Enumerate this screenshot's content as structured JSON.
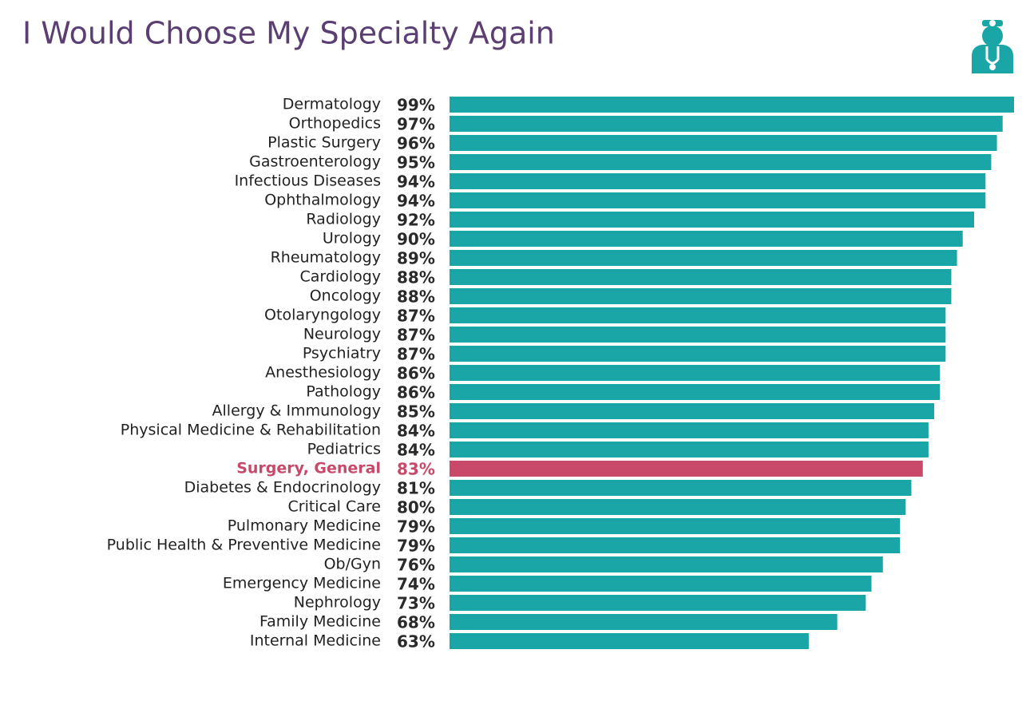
{
  "chart_data": {
    "type": "bar",
    "orientation": "horizontal",
    "title": "I Would Choose My Specialty Again",
    "categories": [
      "Dermatology",
      "Orthopedics",
      "Plastic Surgery",
      "Gastroenterology",
      "Infectious Diseases",
      "Ophthalmology",
      "Radiology",
      "Urology",
      "Rheumatology",
      "Cardiology",
      "Oncology",
      "Otolaryngology",
      "Neurology",
      "Psychiatry",
      "Anesthesiology",
      "Pathology",
      "Allergy & Immunology",
      "Physical Medicine & Rehabilitation",
      "Pediatrics",
      "Surgery, General",
      "Diabetes & Endocrinology",
      "Critical Care",
      "Pulmonary Medicine",
      "Public Health & Preventive Medicine",
      "Ob/Gyn",
      "Emergency Medicine",
      "Nephrology",
      "Family Medicine",
      "Internal Medicine"
    ],
    "values": [
      99,
      97,
      96,
      95,
      94,
      94,
      92,
      90,
      89,
      88,
      88,
      87,
      87,
      87,
      86,
      86,
      85,
      84,
      84,
      83,
      81,
      80,
      79,
      79,
      76,
      74,
      73,
      68,
      63
    ],
    "value_labels": [
      "99%",
      "97%",
      "96%",
      "95%",
      "94%",
      "94%",
      "92%",
      "90%",
      "89%",
      "88%",
      "88%",
      "87%",
      "87%",
      "87%",
      "86%",
      "86%",
      "85%",
      "84%",
      "84%",
      "83%",
      "81%",
      "80%",
      "79%",
      "79%",
      "76%",
      "74%",
      "73%",
      "68%",
      "63%"
    ],
    "color": "#1aa6a6",
    "colors": [
      "#1aa6a6",
      "#1aa6a6",
      "#1aa6a6",
      "#1aa6a6",
      "#1aa6a6",
      "#1aa6a6",
      "#1aa6a6",
      "#1aa6a6",
      "#1aa6a6",
      "#1aa6a6",
      "#1aa6a6",
      "#1aa6a6",
      "#1aa6a6",
      "#1aa6a6",
      "#1aa6a6",
      "#1aa6a6",
      "#1aa6a6",
      "#1aa6a6",
      "#1aa6a6",
      "#c8496a",
      "#1aa6a6",
      "#1aa6a6",
      "#1aa6a6",
      "#1aa6a6",
      "#1aa6a6",
      "#1aa6a6",
      "#1aa6a6",
      "#1aa6a6",
      "#1aa6a6"
    ],
    "xlim": [
      0,
      99
    ]
  }
}
